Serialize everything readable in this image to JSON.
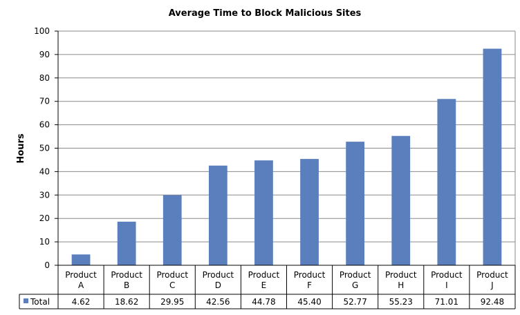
{
  "chart_data": {
    "type": "bar",
    "title": "Average Time to Block Malicious Sites",
    "ylabel": "Hours",
    "xlabel": "",
    "ylim": [
      0,
      100
    ],
    "yticks": [
      0,
      10,
      20,
      30,
      40,
      50,
      60,
      70,
      80,
      90,
      100
    ],
    "grid": true,
    "categories": [
      [
        "Product",
        "A"
      ],
      [
        "Product",
        "B"
      ],
      [
        "Product",
        "C"
      ],
      [
        "Product",
        "D"
      ],
      [
        "Product",
        "E"
      ],
      [
        "Product",
        "F"
      ],
      [
        "Product",
        "G"
      ],
      [
        "Product",
        "H"
      ],
      [
        "Product",
        "I"
      ],
      [
        "Product",
        "J"
      ]
    ],
    "series": [
      {
        "name": "Total",
        "color": "#5b7fbd",
        "values": [
          4.62,
          18.62,
          29.95,
          42.56,
          44.78,
          45.4,
          52.77,
          55.23,
          71.01,
          92.48
        ],
        "labels": [
          "4.62",
          "18.62",
          "29.95",
          "42.56",
          "44.78",
          "45.40",
          "52.77",
          "55.23",
          "71.01",
          "92.48"
        ]
      }
    ]
  }
}
